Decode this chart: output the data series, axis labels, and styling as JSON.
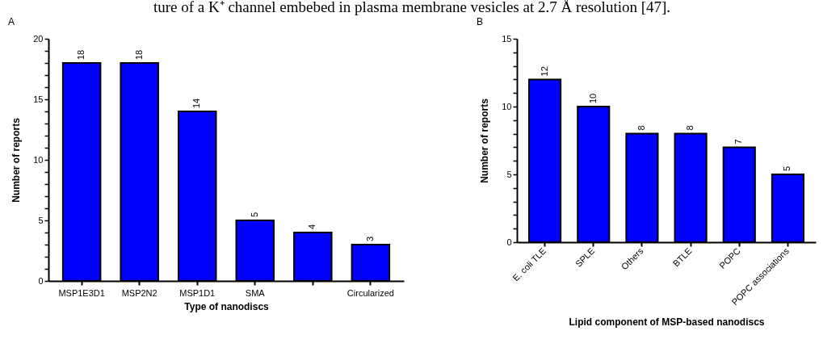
{
  "chart_data": [
    {
      "type": "bar",
      "title": "A",
      "xlabel": "Type of nanodiscs",
      "ylabel": "Number of reports",
      "annotations": [
        "ture of a K⁺ channel embebed in plasma membrane vesicles at 2.7 Å resolution [47]."
      ],
      "categories": [
        "MSP1E3D1",
        "MSP2N2",
        "MSP1D1",
        "SMA",
        null,
        "Circularized"
      ],
      "values": [
        18,
        18,
        14,
        5,
        4,
        3
      ],
      "color": "#0000ff",
      "data_labels": true,
      "grid": false,
      "ylim": [
        0,
        20
      ],
      "yticks": [
        0,
        {
          "value": 1,
          "label": null
        },
        {
          "value": 2,
          "label": null
        },
        {
          "value": 3,
          "label": null
        },
        {
          "value": 4,
          "label": null
        },
        5,
        {
          "value": 6,
          "label": null
        },
        {
          "value": 7,
          "label": null
        },
        {
          "value": 8,
          "label": null
        },
        {
          "value": 9,
          "label": null
        },
        10,
        {
          "value": 11,
          "label": null
        },
        {
          "value": 12,
          "label": null
        },
        {
          "value": 13,
          "label": null
        },
        {
          "value": 14,
          "label": null
        },
        15,
        {
          "value": 16,
          "label": null
        },
        {
          "value": 17,
          "label": null
        },
        {
          "value": 18,
          "label": null
        },
        {
          "value": 19,
          "label": null
        },
        20
      ]
    },
    {
      "type": "bar",
      "title": "B",
      "xlabel": "Lipid component of MSP-based nanodiscs",
      "ylabel": "Number of reports",
      "categories": [
        "E. coli TLE",
        "SPLE",
        "Others",
        "BTLE",
        "POPC",
        "POPC associations"
      ],
      "values": [
        12,
        10,
        8,
        8,
        7,
        5
      ],
      "color": "#0000ff",
      "data_labels": true,
      "grid": false,
      "ylim": [
        0,
        15
      ],
      "yticks": [
        0,
        {
          "value": 1,
          "label": null
        },
        {
          "value": 2,
          "label": null
        },
        {
          "value": 3,
          "label": null
        },
        {
          "value": 4,
          "label": null
        },
        5,
        {
          "value": 6,
          "label": null
        },
        {
          "value": 7,
          "label": null
        },
        {
          "value": 8,
          "label": null
        },
        {
          "value": 9,
          "label": null
        },
        10,
        {
          "value": 11,
          "label": null
        },
        {
          "value": 12,
          "label": null
        },
        {
          "value": 13,
          "label": null
        },
        {
          "value": 14,
          "label": null
        },
        15
      ]
    }
  ]
}
